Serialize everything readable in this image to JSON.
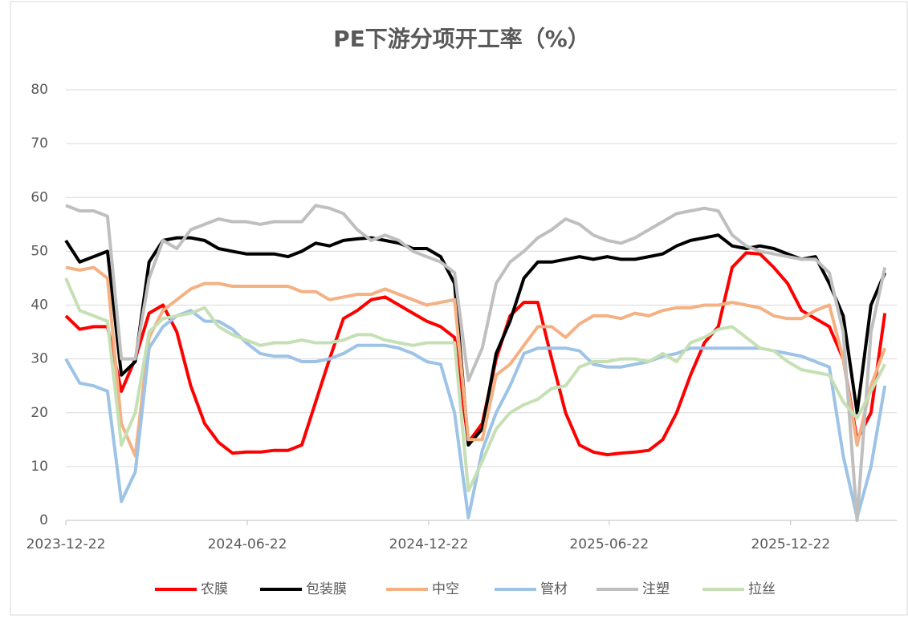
{
  "chart_data": {
    "type": "line",
    "title": "PE下游分项开工率（%）",
    "x": [
      "2023-12-22",
      "2024-01-05",
      "2024-01-19",
      "2024-02-02",
      "2024-02-16",
      "2024-03-01",
      "2024-03-15",
      "2024-03-29",
      "2024-04-12",
      "2024-04-26",
      "2024-05-10",
      "2024-05-24",
      "2024-06-07",
      "2024-06-21",
      "2024-07-05",
      "2024-07-19",
      "2024-08-02",
      "2024-08-16",
      "2024-08-30",
      "2024-09-13",
      "2024-09-27",
      "2024-10-11",
      "2024-10-25",
      "2024-11-08",
      "2024-11-22",
      "2024-12-06",
      "2024-12-20",
      "2025-01-03",
      "2025-01-17",
      "2025-01-31",
      "2025-02-14",
      "2025-02-28",
      "2025-03-14",
      "2025-03-28",
      "2025-04-11",
      "2025-04-25",
      "2025-05-09",
      "2025-05-23",
      "2025-06-06",
      "2025-06-20",
      "2025-07-04",
      "2025-07-18",
      "2025-08-01",
      "2025-08-15",
      "2025-08-29",
      "2025-09-12",
      "2025-09-26",
      "2025-10-10",
      "2025-10-24",
      "2025-11-07",
      "2025-11-21",
      "2025-12-05",
      "2025-12-19",
      "2026-01-02",
      "2026-01-16",
      "2026-01-30",
      "2026-02-13",
      "2026-02-27",
      "2026-03-13",
      "2026-03-27"
    ],
    "xlim": [
      "2023-12-22",
      "2026-04-08"
    ],
    "xticks": [
      "2023-12-22",
      "2024-06-22",
      "2024-12-22",
      "2025-06-22",
      "2025-12-22"
    ],
    "ylim": [
      0,
      80
    ],
    "yticks": [
      0,
      10,
      20,
      30,
      40,
      50,
      60,
      70,
      80
    ],
    "grid": true,
    "legend": "bottom",
    "series": [
      {
        "name": "农膜",
        "color": "#ff0000",
        "values": [
          38,
          35.5,
          36,
          36,
          24,
          30,
          38.5,
          40,
          35,
          25,
          18,
          14.5,
          12.5,
          12.7,
          12.7,
          13,
          13,
          14,
          22,
          30,
          37.5,
          39,
          41,
          41.5,
          40,
          38.5,
          37,
          36,
          34,
          14.5,
          18,
          30,
          38,
          40.5,
          40.5,
          30,
          20,
          14,
          12.7,
          12.2,
          12.5,
          12.7,
          13,
          15,
          20,
          27,
          33,
          36,
          47,
          49.7,
          49.5,
          47,
          44,
          39,
          37.5,
          36,
          30,
          15,
          20,
          38.5
        ]
      },
      {
        "name": "包装膜",
        "color": "#000000",
        "values": [
          52,
          48,
          49,
          50,
          27,
          29.5,
          48,
          52,
          52.5,
          52.5,
          52,
          50.5,
          50,
          49.5,
          49.5,
          49.5,
          49,
          50,
          51.5,
          51,
          52,
          52.3,
          52.5,
          52,
          51.5,
          50.5,
          50.5,
          49,
          44,
          14,
          17,
          31,
          37,
          45,
          48,
          48,
          48.5,
          49,
          48.5,
          49,
          48.5,
          48.5,
          49,
          49.5,
          51,
          52,
          52.5,
          53,
          51,
          50.5,
          51,
          50.5,
          49.5,
          48.5,
          49,
          44,
          38,
          20,
          40,
          46
        ]
      },
      {
        "name": "中空",
        "color": "#f4b183",
        "values": [
          47,
          46.5,
          47,
          45,
          18,
          12,
          34,
          39,
          41,
          43,
          44,
          44,
          43.5,
          43.5,
          43.5,
          43.5,
          43.5,
          42.5,
          42.5,
          41,
          41.5,
          42,
          42,
          43,
          42,
          41,
          40,
          40.5,
          41,
          15,
          15,
          27,
          29,
          32.5,
          36,
          36,
          34,
          36.5,
          38,
          38,
          37.5,
          38.5,
          38,
          39,
          39.5,
          39.5,
          40,
          40,
          40.5,
          40,
          39.5,
          38,
          37.5,
          37.5,
          39,
          40,
          30,
          14,
          25,
          32
        ]
      },
      {
        "name": "管材",
        "color": "#9dc3e6",
        "values": [
          30,
          25.5,
          25,
          24,
          3.5,
          9,
          32,
          36,
          38,
          39,
          37,
          37,
          35.5,
          33,
          31,
          30.5,
          30.5,
          29.5,
          29.5,
          30,
          31,
          32.5,
          32.5,
          32.5,
          32,
          31,
          29.5,
          29,
          20,
          0.5,
          13,
          20,
          25,
          31,
          32,
          32,
          32,
          31.5,
          29,
          28.5,
          28.5,
          29,
          29.5,
          30.5,
          31,
          32,
          32,
          32,
          32,
          32,
          32,
          31.5,
          31,
          30.5,
          29.5,
          28.5,
          12,
          0.5,
          10,
          25
        ]
      },
      {
        "name": "注塑",
        "color": "#bfbfbf",
        "values": [
          58.5,
          57.5,
          57.5,
          56.5,
          30,
          30,
          45,
          52,
          50.5,
          54,
          55,
          56,
          55.5,
          55.5,
          55,
          55.5,
          55.5,
          55.5,
          58.5,
          58,
          57,
          54,
          52,
          53,
          52,
          50,
          49,
          48,
          46,
          26,
          32,
          44,
          48,
          50,
          52.5,
          54,
          56,
          55,
          53,
          52,
          51.5,
          52.5,
          54,
          55.5,
          57,
          57.5,
          58,
          57.5,
          53,
          51,
          50,
          49.5,
          49,
          48.5,
          48.5,
          46,
          35,
          0,
          35,
          47
        ]
      },
      {
        "name": "拉丝",
        "color": "#c5e0b4",
        "values": [
          45,
          39,
          38,
          37,
          14,
          20,
          35,
          37.5,
          38,
          38.5,
          39.5,
          36,
          34.5,
          33.5,
          32.5,
          33,
          33,
          33.5,
          33,
          33,
          33.5,
          34.5,
          34.5,
          33.5,
          33,
          32.5,
          33,
          33,
          33,
          5.5,
          11,
          17,
          20,
          21.5,
          22.5,
          24.5,
          25,
          28.5,
          29.5,
          29.5,
          30,
          30,
          29.5,
          31,
          29.5,
          33,
          34,
          35.5,
          36,
          34,
          32,
          31.5,
          29.5,
          28,
          27.5,
          27,
          22,
          19,
          24,
          29
        ]
      }
    ]
  }
}
